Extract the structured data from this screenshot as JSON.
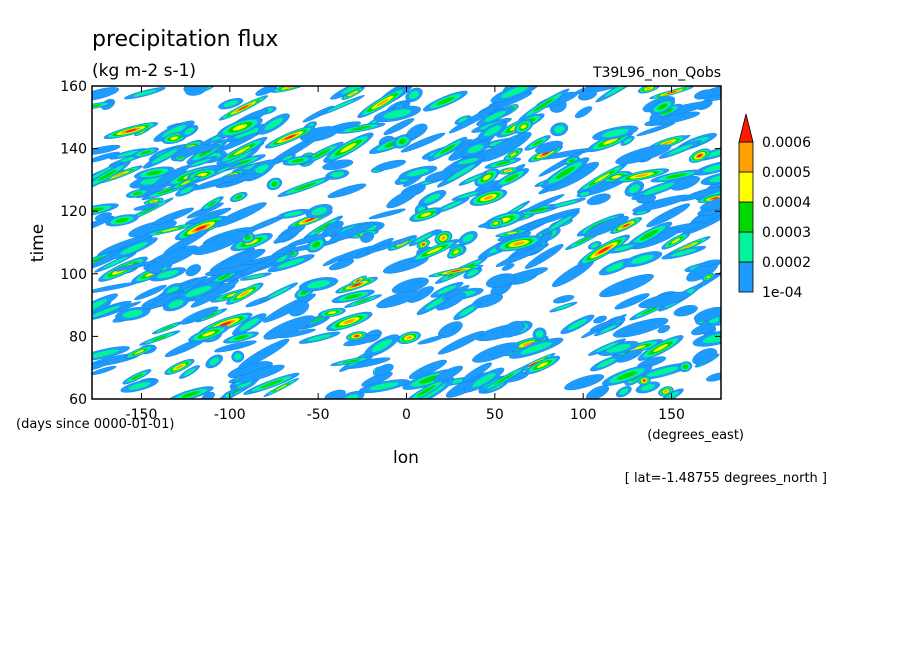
{
  "chart_data": {
    "type": "heatmap",
    "title": "precipitation flux",
    "units": "(kg m-2 s-1)",
    "experiment": "T39L96_non_Qobs",
    "xlabel": "lon",
    "xunits": "(degrees_east)",
    "ylabel": "time",
    "yunits": "(days since 0000-01-01)",
    "annotation": "[ lat=-1.48755 degrees_north ]",
    "xlim": [
      -178,
      178
    ],
    "ylim": [
      60,
      160
    ],
    "xticks": [
      -150,
      -100,
      -50,
      0,
      50,
      100,
      150
    ],
    "yticks": [
      60,
      80,
      100,
      120,
      140,
      160
    ],
    "xtick_labels": [
      "-150",
      "-100",
      "-50",
      "0",
      "50",
      "100",
      "150"
    ],
    "ytick_labels": [
      "60",
      "80",
      "100",
      "120",
      "140",
      "160"
    ],
    "colorbar": {
      "levels": [
        0.0001,
        0.0002,
        0.0003,
        0.0004,
        0.0005,
        0.0006
      ],
      "labels": [
        "1e-04",
        "0.0002",
        "0.0003",
        "0.0004",
        "0.0005",
        "0.0006"
      ],
      "colors": [
        "#1e9bff",
        "#00f59a",
        "#00d800",
        "#ffff00",
        "#ffa000",
        "#ff1a00"
      ],
      "extend": "max"
    },
    "pattern": "many small elongated rain patches tilted eastward with time (eastward-propagating bands)"
  }
}
